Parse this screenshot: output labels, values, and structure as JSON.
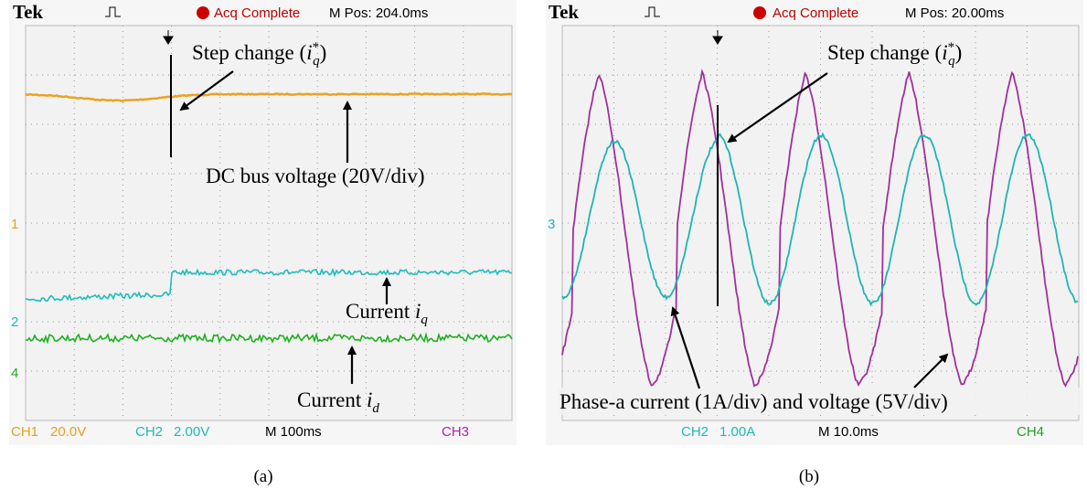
{
  "panels": [
    {
      "header": {
        "brand": "Tek",
        "status": "Acq Complete",
        "position": "M Pos: 204.0ms"
      },
      "channel_markers": [
        "1",
        "2",
        "4"
      ],
      "annotations": {
        "step": {
          "text": "Step change (",
          "var": "i",
          "sup": "*",
          "sub": "q",
          "close": ")"
        },
        "dc_bus": "DC bus voltage (20V/div)",
        "current_q": {
          "text": "Current ",
          "var": "i",
          "sub": "q"
        },
        "current_d": {
          "text": "Current ",
          "var": "i",
          "sub": "d"
        }
      },
      "footer": {
        "ch1": "CH1",
        "ch1_scale": "20.0V",
        "ch2": "CH2",
        "ch2_scale": "2.00V",
        "time": "M 100ms",
        "ch3": "CH3"
      },
      "caption": "(a)"
    },
    {
      "header": {
        "brand": "Tek",
        "status": "Acq Complete",
        "position": "M Pos: 20.00ms"
      },
      "channel_markers": [
        "3"
      ],
      "annotations": {
        "step": {
          "text": "Step change (",
          "var": "i",
          "sup": "*",
          "sub": "q",
          "close": ")"
        },
        "phase": "Phase-a current (1A/div) and voltage (5V/div)"
      },
      "footer": {
        "ch2": "CH2",
        "ch2_scale": "1.00A",
        "time": "M 10.0ms",
        "ch4": "CH4"
      },
      "caption": "(b)"
    }
  ]
}
